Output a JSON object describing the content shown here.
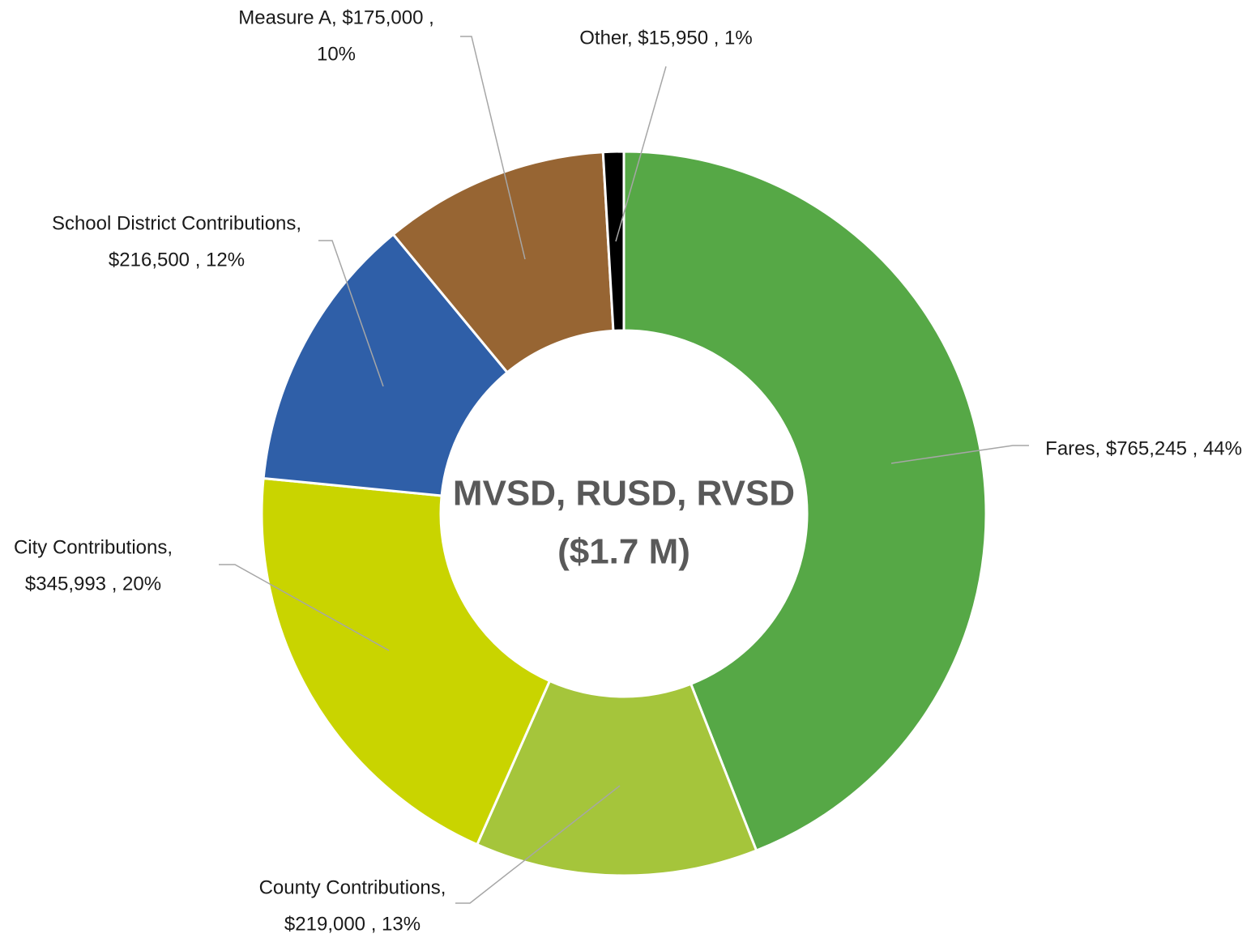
{
  "chart_data": {
    "type": "donut",
    "center_text": [
      "MVSD, RUSD, RVSD",
      "($1.7 M)"
    ],
    "values": [
      765245,
      219000,
      345993,
      216500,
      175000,
      15950
    ],
    "value_labels": [
      [
        "Fares,  $765,245 , 44%"
      ],
      [
        "County Contributions,",
        "$219,000 , 13%"
      ],
      [
        "City Contributions,",
        "$345,993 , 20%"
      ],
      [
        "School District Contributions,",
        "$216,500 , 12%"
      ],
      [
        "Measure A,  $175,000 ,",
        "10%"
      ],
      [
        "Other,  $15,950 , 1%"
      ]
    ],
    "colors": [
      "#56a846",
      "#a5c53b",
      "#c9d400",
      "#2f5fa8",
      "#976533",
      "#000000"
    ]
  }
}
